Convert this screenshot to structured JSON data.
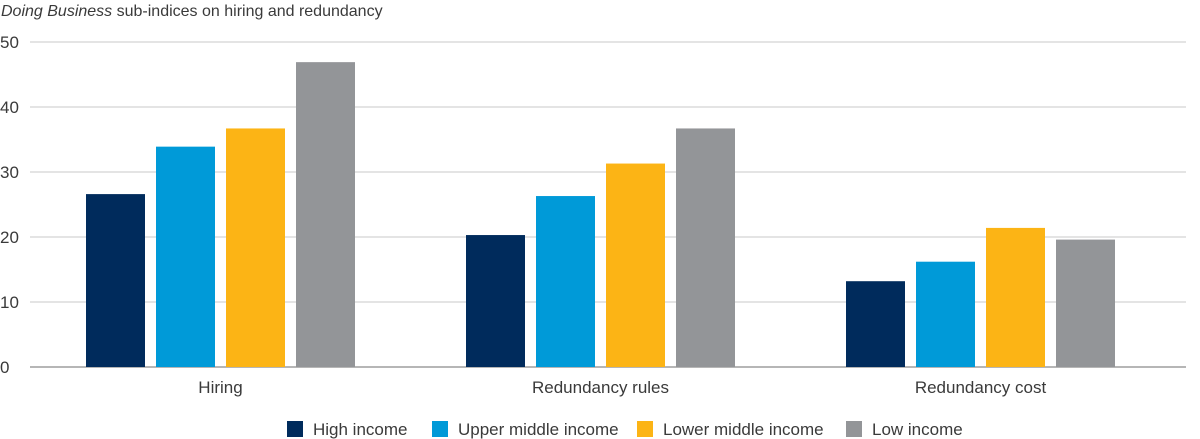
{
  "chart_data": {
    "type": "bar",
    "title_italic": "Doing Business",
    "title_rest": " sub-indices on hiring and redundancy",
    "categories": [
      "Hiring",
      "Redundancy rules",
      "Redundancy cost"
    ],
    "series": [
      {
        "name": "High income",
        "color": "#002b5c",
        "values": [
          26.6,
          20.3,
          13.2
        ]
      },
      {
        "name": "Upper middle income",
        "color": "#009ad8",
        "values": [
          33.9,
          26.3,
          16.2
        ]
      },
      {
        "name": "Lower middle income",
        "color": "#fcb415",
        "values": [
          36.7,
          31.3,
          21.4
        ]
      },
      {
        "name": "Low income",
        "color": "#939598",
        "values": [
          46.9,
          36.7,
          19.6
        ]
      }
    ],
    "ylim": [
      0,
      50
    ],
    "yticks": [
      0,
      10,
      20,
      30,
      40,
      50
    ],
    "xlabel": "",
    "ylabel": "",
    "grid": true,
    "legend_position": "bottom"
  }
}
